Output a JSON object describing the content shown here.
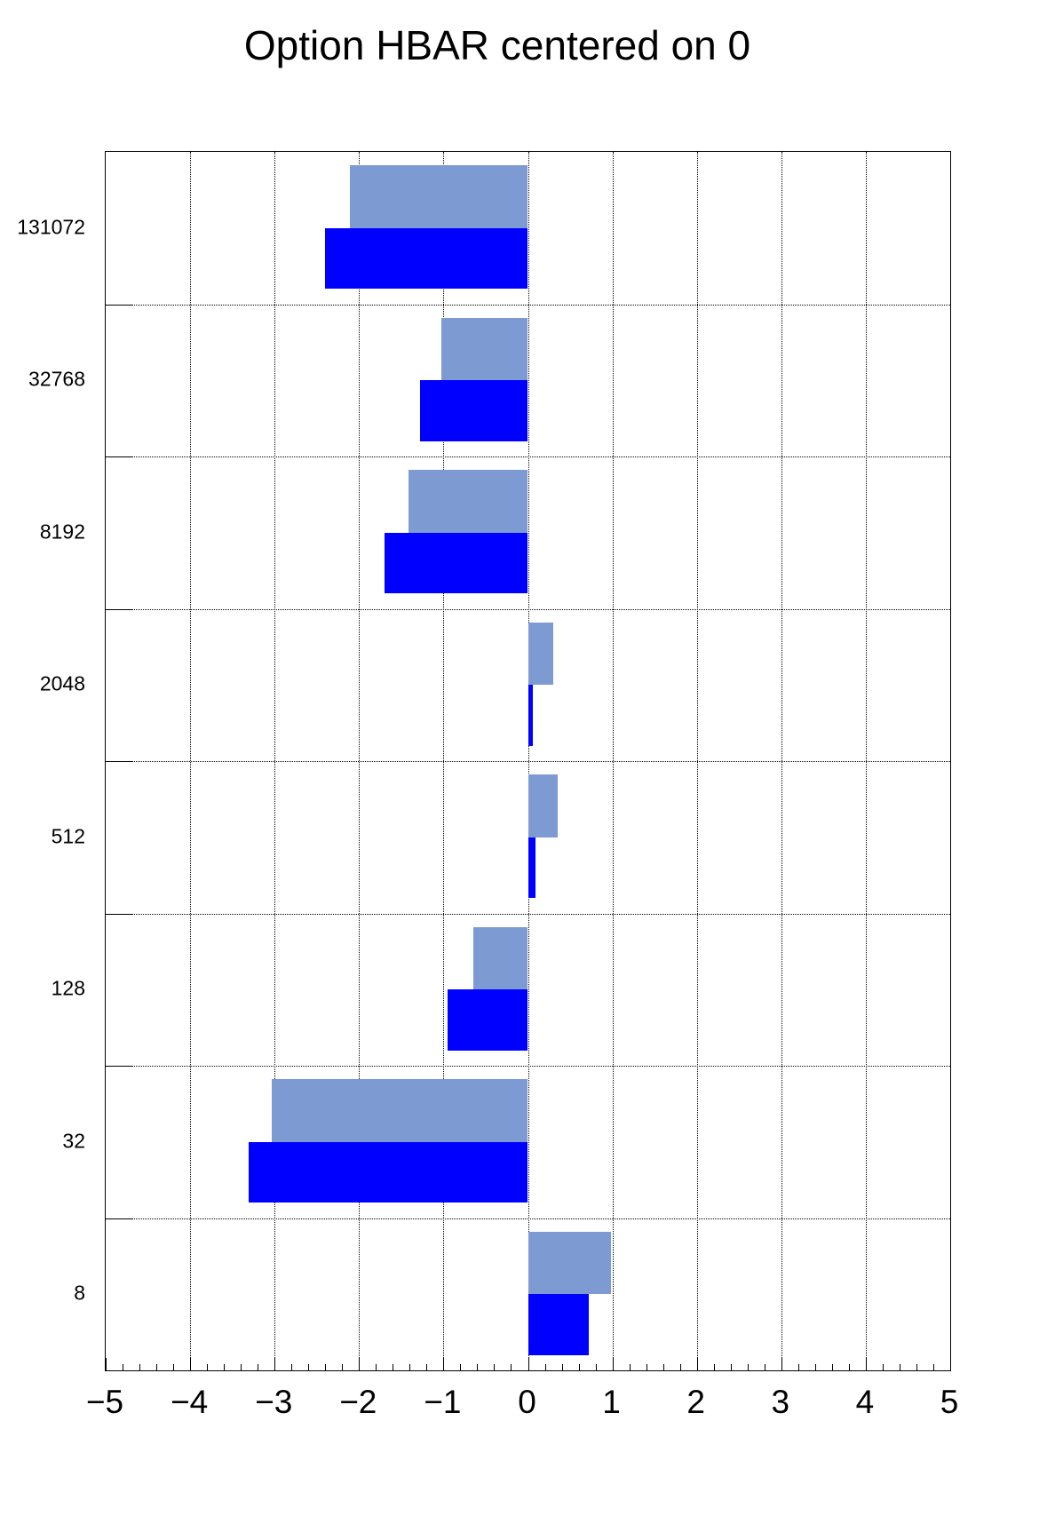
{
  "colors": {
    "background": "#ffffff",
    "frame_line": "#000000",
    "grid_line": "#000000",
    "text": "#000000",
    "light_bar": "#7d9bd2",
    "dark_bar": "#0000ff"
  },
  "chart_data": {
    "type": "bar",
    "orientation": "horizontal",
    "title": "Option HBAR centered on 0",
    "categories": [
      "131072",
      "32768",
      "8192",
      "2048",
      "512",
      "128",
      "32",
      "8"
    ],
    "series": [
      {
        "name": "light-blue-bars",
        "color": "#7d9bd2",
        "values": [
          -2.11,
          -1.03,
          -1.41,
          0.3,
          0.35,
          -0.65,
          -3.03,
          0.98
        ]
      },
      {
        "name": "dark-blue-bars",
        "color": "#0000ff",
        "values": [
          -2.4,
          -1.28,
          -1.7,
          0.06,
          0.09,
          -0.95,
          -3.31,
          0.72
        ]
      }
    ],
    "xlabel": "",
    "ylabel": "",
    "xlim": [
      -5,
      5
    ],
    "x_major_ticks": [
      -5,
      -4,
      -3,
      -2,
      -1,
      0,
      1,
      2,
      3,
      4,
      5
    ],
    "x_tick_labels": [
      "−5",
      "−4",
      "−3",
      "−2",
      "−1",
      "0",
      "1",
      "2",
      "3",
      "4",
      "5"
    ],
    "x_minor_tick_step": 0.2,
    "grid": "dotted lines at integer x values and at category bin boundaries",
    "legend_position": "none",
    "bars_baseline": 0
  }
}
